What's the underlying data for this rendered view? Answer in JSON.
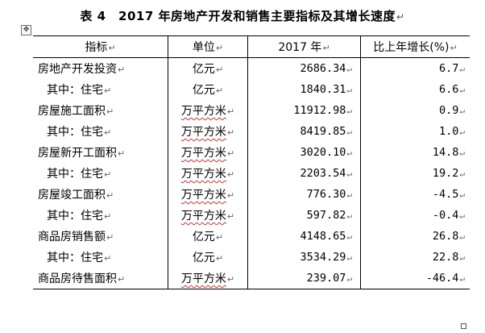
{
  "title": "表 4　2017 年房地产开发和销售主要指标及其增长速度",
  "paragraph_mark": "↵",
  "table": {
    "headers": [
      "指标",
      "单位",
      "2017 年",
      "比上年增长(%)"
    ],
    "rows": [
      {
        "indicator": "房地产开发投资",
        "unit": "亿元",
        "value": "2686.34",
        "growth": "6.7",
        "indent": false
      },
      {
        "indicator": "其中：住宅",
        "unit": "亿元",
        "value": "1840.31",
        "growth": "6.6",
        "indent": true
      },
      {
        "indicator": "房屋施工面积",
        "unit": "万平方米",
        "value": "11912.98",
        "growth": "0.9",
        "indent": false
      },
      {
        "indicator": "其中：住宅",
        "unit": "万平方米",
        "value": "8419.85",
        "growth": "1.0",
        "indent": true
      },
      {
        "indicator": "房屋新开工面积",
        "unit": "万平方米",
        "value": "3020.10",
        "growth": "14.8",
        "indent": false
      },
      {
        "indicator": "其中：住宅",
        "unit": "万平方米",
        "value": "2203.54",
        "growth": "19.2",
        "indent": true
      },
      {
        "indicator": "房屋竣工面积",
        "unit": "万平方米",
        "value": "776.30",
        "growth": "-4.5",
        "indent": false
      },
      {
        "indicator": "其中：住宅",
        "unit": "万平方米",
        "value": "597.82",
        "growth": "-0.4",
        "indent": true
      },
      {
        "indicator": "商品房销售额",
        "unit": "亿元",
        "value": "4148.65",
        "growth": "26.8",
        "indent": false
      },
      {
        "indicator": "其中：住宅",
        "unit": "亿元",
        "value": "3534.29",
        "growth": "22.8",
        "indent": true
      },
      {
        "indicator": "商品房待售面积",
        "unit": "万平方米",
        "value": "239.07",
        "growth": "-46.4",
        "indent": false
      }
    ]
  },
  "icons": {
    "move_handle": "table-move-handle-icon",
    "end_marker": "table-resize-handle-icon"
  }
}
